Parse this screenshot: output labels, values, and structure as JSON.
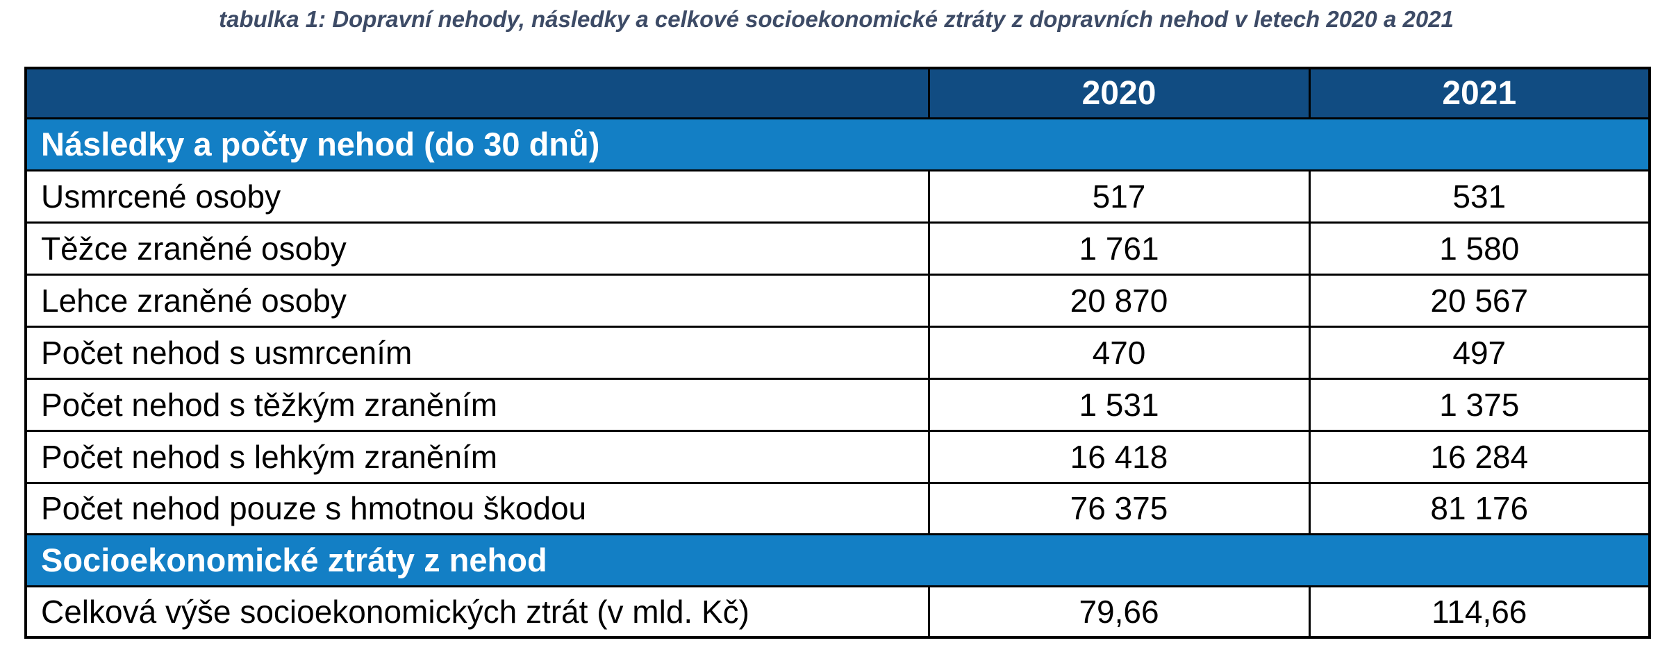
{
  "theme": {
    "page_bg": "#ffffff",
    "header_bg": "#114c82",
    "section_bg": "#137fc5",
    "title_color": "#3d4b66",
    "border_color": "#000000",
    "header_text": "#ffffff",
    "body_text": "#000000"
  },
  "title": "tabulka 1: Dopravní nehody, následky a celkové socioekonomické ztráty z dopravních nehod v letech 2020 a 2021",
  "table": {
    "columns": [
      "",
      "2020",
      "2021"
    ],
    "sections": [
      {
        "label": "Následky a počty nehod (do 30 dnů)",
        "rows": [
          {
            "label": "Usmrcené osoby",
            "values": [
              "517",
              "531"
            ]
          },
          {
            "label": "Těžce zraněné osoby",
            "values": [
              "1 761",
              "1 580"
            ]
          },
          {
            "label": "Lehce zraněné osoby",
            "values": [
              "20 870",
              "20 567"
            ]
          },
          {
            "label": "Počet nehod s usmrcením",
            "values": [
              "470",
              "497"
            ]
          },
          {
            "label": "Počet nehod s těžkým zraněním",
            "values": [
              "1 531",
              "1 375"
            ]
          },
          {
            "label": "Počet nehod s lehkým zraněním",
            "values": [
              "16 418",
              "16 284"
            ]
          },
          {
            "label": "Počet nehod pouze s hmotnou škodou",
            "values": [
              "76 375",
              "81 176"
            ]
          }
        ]
      },
      {
        "label": "Socioekonomické ztráty z nehod",
        "rows": [
          {
            "label": "Celková výše socioekonomických ztrát (v mld. Kč)",
            "values": [
              "79,66",
              "114,66"
            ]
          }
        ]
      }
    ]
  }
}
